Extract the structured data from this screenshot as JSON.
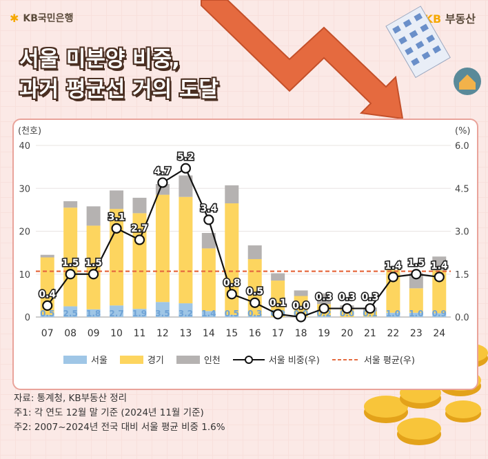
{
  "header": {
    "bank_name": "KB국민은행",
    "brand_prefix": "KB",
    "brand_suffix": "부동산"
  },
  "title": {
    "line1": "서울 미분양 비중,",
    "line2": "과거 평균선 거의 도달"
  },
  "chart_data": {
    "type": "bar",
    "stacked": true,
    "categories": [
      "07",
      "08",
      "09",
      "10",
      "11",
      "12",
      "13",
      "14",
      "15",
      "16",
      "17",
      "18",
      "19",
      "20",
      "21",
      "22",
      "23",
      "24"
    ],
    "series": [
      {
        "name": "서울",
        "values": [
          0.5,
          2.5,
          1.8,
          2.7,
          1.9,
          3.5,
          3.2,
          1.4,
          0.5,
          0.3,
          0.0,
          0.0,
          0.2,
          0.0,
          0.1,
          1.0,
          1.0,
          0.9
        ]
      },
      {
        "name": "경기",
        "values": [
          13.4,
          23.0,
          19.5,
          22.5,
          22.3,
          25.0,
          24.8,
          14.6,
          26.0,
          13.2,
          8.5,
          4.9,
          2.8,
          1.8,
          1.2,
          10.0,
          5.7,
          10.0
        ]
      },
      {
        "name": "인천",
        "values": [
          0.6,
          1.5,
          4.5,
          4.3,
          3.6,
          2.5,
          5.0,
          3.6,
          4.2,
          3.2,
          1.7,
          1.3,
          2.5,
          0.9,
          0.9,
          0.0,
          3.5,
          3.2
        ]
      }
    ],
    "line": {
      "name": "서울 비중(우)",
      "values": [
        0.4,
        1.5,
        1.5,
        3.1,
        2.7,
        4.7,
        5.2,
        3.4,
        0.8,
        0.5,
        0.1,
        0.0,
        0.3,
        0.3,
        0.3,
        1.4,
        1.5,
        1.4
      ]
    },
    "average": {
      "name": "서울 평균(우)",
      "value": 1.6
    },
    "y_left": {
      "unit": "(천호)",
      "ylim": [
        0,
        40
      ],
      "ticks": [
        "0",
        "10",
        "20",
        "30",
        "40"
      ]
    },
    "y_right": {
      "unit": "(%)",
      "ylim": [
        0,
        6
      ],
      "ticks": [
        "0.0",
        "1.5",
        "3.0",
        "4.5",
        "6.0"
      ]
    },
    "legend": [
      "서울",
      "경기",
      "인천",
      "서울 비중(우)",
      "서울 평균(우)"
    ],
    "colors": {
      "seoul": "#9fc6e6",
      "gyeonggi": "#fdd55f",
      "incheon": "#b5b2b1",
      "line": "#111111",
      "average": "#e56a3f"
    }
  },
  "notes": {
    "source": "자료: 통계청, KB부동산 정리",
    "note1": "주1: 각 연도 12월 말 기준 (2024년 11월 기준)",
    "note2": "주2: 2007~2024년 전국 대비 서울 평균 비중 1.6%"
  }
}
